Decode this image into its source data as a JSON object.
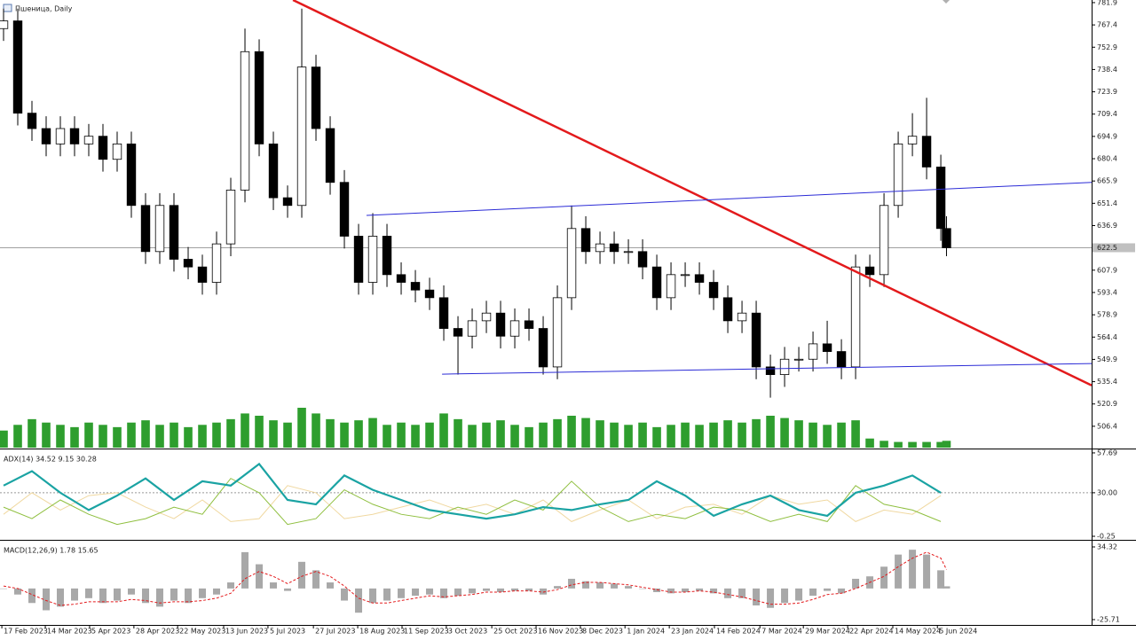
{
  "chart_data": [
    {
      "type": "candlestick",
      "title": "Пшеница, Daily",
      "x": [
        0,
        5,
        10,
        15,
        20,
        25,
        30,
        35,
        40,
        45,
        50,
        55,
        60,
        65,
        70,
        75,
        80,
        85,
        90,
        95,
        100,
        105,
        110,
        115,
        120,
        125,
        130,
        135,
        140,
        145,
        150,
        155,
        160,
        165,
        170,
        175,
        180,
        185,
        190,
        195,
        200,
        205,
        210,
        215,
        220,
        225,
        230,
        235,
        240,
        245,
        250,
        255,
        260,
        265,
        270,
        275,
        280,
        285,
        290,
        295,
        300,
        305,
        310,
        315,
        320,
        325,
        330,
        332
      ],
      "open": [
        765,
        770,
        710,
        700,
        690,
        700,
        690,
        695,
        680,
        690,
        650,
        620,
        650,
        615,
        610,
        600,
        625,
        660,
        750,
        690,
        655,
        650,
        740,
        700,
        665,
        630,
        600,
        630,
        605,
        600,
        595,
        590,
        570,
        565,
        575,
        580,
        565,
        575,
        570,
        545,
        590,
        635,
        620,
        625,
        620,
        620,
        610,
        590,
        605,
        605,
        600,
        590,
        575,
        580,
        545,
        540,
        550,
        550,
        560,
        555,
        545,
        610,
        605,
        650,
        690,
        695,
        675,
        635
      ],
      "high": [
        778,
        778,
        718,
        708,
        708,
        708,
        703,
        703,
        698,
        698,
        658,
        658,
        658,
        623,
        618,
        633,
        668,
        765,
        758,
        698,
        663,
        778,
        748,
        708,
        673,
        638,
        645,
        638,
        613,
        608,
        603,
        598,
        578,
        583,
        588,
        588,
        583,
        583,
        578,
        598,
        650,
        643,
        633,
        633,
        628,
        628,
        618,
        613,
        613,
        613,
        608,
        598,
        588,
        588,
        553,
        558,
        558,
        568,
        575,
        563,
        618,
        618,
        658,
        698,
        710,
        720,
        683,
        643
      ],
      "low": [
        757,
        702,
        692,
        682,
        682,
        682,
        682,
        672,
        672,
        642,
        612,
        612,
        607,
        602,
        592,
        592,
        617,
        652,
        682,
        647,
        642,
        642,
        692,
        657,
        622,
        592,
        592,
        597,
        592,
        587,
        582,
        562,
        540,
        557,
        567,
        557,
        557,
        562,
        540,
        537,
        582,
        612,
        612,
        612,
        612,
        602,
        582,
        582,
        597,
        592,
        582,
        567,
        567,
        537,
        525,
        532,
        542,
        542,
        547,
        537,
        537,
        597,
        597,
        642,
        682,
        667,
        627,
        617
      ],
      "close": [
        770,
        710,
        700,
        690,
        700,
        690,
        695,
        680,
        690,
        650,
        620,
        650,
        615,
        610,
        600,
        625,
        660,
        750,
        690,
        655,
        650,
        740,
        700,
        665,
        630,
        600,
        630,
        605,
        600,
        595,
        590,
        570,
        565,
        575,
        580,
        565,
        575,
        570,
        545,
        590,
        635,
        620,
        625,
        620,
        620,
        610,
        590,
        605,
        605,
        600,
        590,
        575,
        580,
        545,
        540,
        550,
        550,
        560,
        555,
        545,
        610,
        605,
        650,
        690,
        695,
        675,
        635,
        622.5
      ],
      "volume": [
        15,
        20,
        25,
        22,
        20,
        18,
        22,
        20,
        18,
        22,
        24,
        20,
        22,
        18,
        20,
        22,
        25,
        30,
        28,
        24,
        22,
        35,
        30,
        25,
        22,
        24,
        26,
        20,
        22,
        20,
        22,
        30,
        25,
        20,
        22,
        24,
        20,
        18,
        22,
        25,
        28,
        26,
        24,
        22,
        20,
        22,
        18,
        20,
        22,
        20,
        22,
        24,
        22,
        25,
        28,
        26,
        24,
        22,
        20,
        22,
        24,
        8,
        6,
        5,
        5,
        5,
        5,
        6
      ],
      "up_color": "#ffffff",
      "down_color": "#000000",
      "edge_color": "#000000",
      "volume_color": "#2e9e2e",
      "current_price": 622.5,
      "trendlines": [
        {
          "x": [
            101.9,
            383.1
          ],
          "y": [
            783.6,
            533.0
          ],
          "color": "#e31a1c"
        },
        {
          "x": [
            127.8,
            383.1
          ],
          "y": [
            643.5,
            665.0
          ],
          "color": "#2b2bd6"
        },
        {
          "x": [
            154.4,
            383.1
          ],
          "y": [
            540.3,
            547.2
          ],
          "color": "#2b2bd6"
        }
      ],
      "xlim": [
        -1.25,
        383.1
      ],
      "ylim": [
        492.5,
        783.6
      ],
      "yticks": [
        781.9,
        767.4,
        752.9,
        738.4,
        723.9,
        709.4,
        694.9,
        680.4,
        665.9,
        651.4,
        636.9,
        607.9,
        593.4,
        578.9,
        564.4,
        549.9,
        535.4,
        520.9,
        506.4
      ]
    },
    {
      "type": "line",
      "title": "ADX(14) 34.52 9.15 30.28",
      "x": [
        0,
        10,
        20,
        30,
        40,
        50,
        60,
        70,
        80,
        90,
        100,
        110,
        120,
        130,
        140,
        150,
        160,
        170,
        180,
        190,
        200,
        210,
        220,
        230,
        240,
        250,
        260,
        270,
        280,
        290,
        300,
        310,
        320,
        330
      ],
      "series": [
        {
          "color": "#1aa3a3",
          "values": [
            35,
            45,
            30,
            18,
            28,
            40,
            25,
            38,
            35,
            50,
            25,
            22,
            42,
            32,
            25,
            18,
            15,
            12,
            15,
            20,
            18,
            22,
            25,
            38,
            28,
            14,
            22,
            28,
            18,
            14,
            30,
            35,
            42,
            30
          ]
        },
        {
          "color": "#8fbf3f",
          "values": [
            20,
            12,
            25,
            15,
            8,
            12,
            20,
            15,
            40,
            30,
            8,
            12,
            32,
            22,
            15,
            12,
            20,
            15,
            25,
            18,
            38,
            20,
            10,
            15,
            12,
            20,
            18,
            10,
            15,
            10,
            35,
            22,
            18,
            10
          ]
        },
        {
          "color": "#f0d8a0",
          "values": [
            15,
            30,
            18,
            28,
            30,
            20,
            12,
            25,
            10,
            12,
            35,
            30,
            12,
            15,
            20,
            25,
            18,
            22,
            15,
            25,
            10,
            18,
            25,
            12,
            20,
            22,
            15,
            28,
            22,
            25,
            10,
            18,
            15,
            28
          ]
        }
      ],
      "level": 30,
      "xlim": [
        -1.25,
        383.1
      ],
      "ylim": [
        -2.1,
        59.5
      ],
      "yticks": [
        57.69,
        {
          "value": 30,
          "label": "30.00"
        },
        -0.25
      ]
    },
    {
      "type": "macd",
      "title": "MACD(12,26,9) 1.78 15.65",
      "x": [
        0,
        5,
        10,
        15,
        20,
        25,
        30,
        35,
        40,
        45,
        50,
        55,
        60,
        65,
        70,
        75,
        80,
        85,
        90,
        95,
        100,
        105,
        110,
        115,
        120,
        125,
        130,
        135,
        140,
        145,
        150,
        155,
        160,
        165,
        170,
        175,
        180,
        185,
        190,
        195,
        200,
        205,
        210,
        215,
        220,
        225,
        230,
        235,
        240,
        245,
        250,
        255,
        260,
        265,
        270,
        275,
        280,
        285,
        290,
        295,
        300,
        305,
        310,
        315,
        320,
        325,
        330,
        332
      ],
      "histogram": {
        "color": "#a8a8a8",
        "values": [
          0,
          -5,
          -12,
          -18,
          -15,
          -10,
          -8,
          -12,
          -10,
          -5,
          -12,
          -15,
          -10,
          -12,
          -8,
          -5,
          5,
          30,
          20,
          5,
          -2,
          22,
          15,
          5,
          -10,
          -20,
          -12,
          -10,
          -8,
          -6,
          -5,
          -8,
          -6,
          -4,
          -2,
          -3,
          -2,
          -2,
          -5,
          2,
          8,
          6,
          5,
          4,
          2,
          0,
          -3,
          -4,
          -3,
          -2,
          -4,
          -8,
          -8,
          -14,
          -16,
          -12,
          -10,
          -6,
          -2,
          -4,
          8,
          10,
          18,
          28,
          32,
          28,
          15,
          1.78
        ]
      },
      "signal": {
        "color": "#e31a1c",
        "values": [
          2,
          0,
          -5,
          -10,
          -14,
          -13,
          -11,
          -11,
          -11,
          -9,
          -10,
          -12,
          -11,
          -11,
          -10,
          -8,
          -4,
          8,
          14,
          10,
          4,
          10,
          14,
          10,
          2,
          -8,
          -12,
          -12,
          -10,
          -8,
          -6,
          -7,
          -6,
          -5,
          -3,
          -3,
          -2,
          -2,
          -3,
          -1,
          3,
          5,
          5,
          4,
          3,
          1,
          -1,
          -3,
          -3,
          -2,
          -3,
          -5,
          -7,
          -10,
          -13,
          -13,
          -12,
          -9,
          -5,
          -4,
          0,
          5,
          10,
          18,
          25,
          30,
          25,
          15.65
        ]
      },
      "xlim": [
        -1.25,
        383.1
      ],
      "ylim": [
        -30.1,
        38.7
      ],
      "yticks": [
        34.32,
        -25.71
      ],
      "xticks": [
        {
          "value": -0.6,
          "label": "17 Feb 2023"
        },
        {
          "value": 14.7,
          "label": "14 Mar 2023"
        },
        {
          "value": 30.3,
          "label": "5 Apr 2023"
        },
        {
          "value": 45.9,
          "label": "28 Apr 2023"
        },
        {
          "value": 61.3,
          "label": "22 May 2023"
        },
        {
          "value": 77.5,
          "label": "13 Jun 2023"
        },
        {
          "value": 93.1,
          "label": "5 Jul 2023"
        },
        {
          "value": 109.1,
          "label": "27 Jul 2023"
        },
        {
          "value": 124.7,
          "label": "18 Aug 2023"
        },
        {
          "value": 140.3,
          "label": "11 Sep 2023"
        },
        {
          "value": 155.9,
          "label": "3 Oct 2023"
        },
        {
          "value": 171.9,
          "label": "25 Oct 2023"
        },
        {
          "value": 187.5,
          "label": "16 Nov 2023"
        },
        {
          "value": 203.1,
          "label": "8 Dec 2023"
        },
        {
          "value": 218.8,
          "label": "1 Jan 2024"
        },
        {
          "value": 234.4,
          "label": "23 Jan 2024"
        },
        {
          "value": 250.3,
          "label": "14 Feb 2024"
        },
        {
          "value": 266.3,
          "label": "7 Mar 2024"
        },
        {
          "value": 281.6,
          "label": "29 Mar 2024"
        },
        {
          "value": 297.2,
          "label": "22 Apr 2024"
        },
        {
          "value": 313.1,
          "label": "14 May 2024"
        },
        {
          "value": 328.8,
          "label": "5 Jun 2024"
        }
      ]
    }
  ]
}
